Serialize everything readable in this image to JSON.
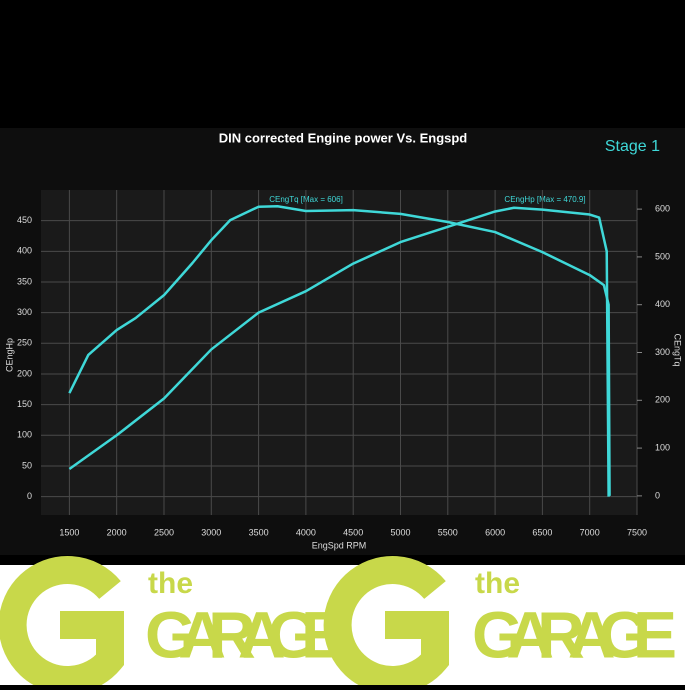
{
  "chart_data": {
    "type": "line",
    "title": "DIN corrected Engine power Vs. Engspd",
    "subtitle": "Stage 1",
    "xlabel": "EngSpd RPM",
    "ylabel": "CEngHp",
    "y2label": "CEngTq",
    "xlim": [
      1200,
      7500
    ],
    "xticks": [
      1500,
      2000,
      2500,
      3000,
      3500,
      4000,
      4500,
      5000,
      5500,
      6000,
      6500,
      7000,
      7500
    ],
    "ylim": [
      -30,
      500
    ],
    "yticks": [
      0,
      50,
      100,
      150,
      200,
      250,
      300,
      350,
      400,
      450
    ],
    "y2lim": [
      -40,
      640
    ],
    "y2ticks": [
      0,
      100,
      200,
      300,
      400,
      500,
      600
    ],
    "grid": true,
    "annotations": [
      "CEngTq [Max = 606]",
      "CEngHp [Max = 470.9]"
    ],
    "series": [
      {
        "name": "CEngTq",
        "color": "#3fd8d8",
        "axis": "y2",
        "x": [
          1500,
          1700,
          2000,
          2200,
          2500,
          2800,
          3000,
          3200,
          3500,
          3700,
          4000,
          4500,
          5000,
          5500,
          6000,
          6500,
          7000,
          7150,
          7200,
          7210
        ],
        "values": [
          215,
          295,
          347,
          372,
          420,
          487,
          535,
          577,
          605,
          606,
          596,
          598,
          590,
          573,
          552,
          510,
          462,
          441,
          400,
          0
        ]
      },
      {
        "name": "CEngHp",
        "color": "#3fd8d8",
        "axis": "y",
        "x": [
          1500,
          2000,
          2500,
          3000,
          3500,
          4000,
          4500,
          5000,
          5500,
          6000,
          6200,
          6500,
          7000,
          7100,
          7180,
          7200
        ],
        "values": [
          45,
          100,
          160,
          240,
          300,
          335,
          380,
          415,
          440,
          465,
          471,
          468,
          460,
          455,
          400,
          0
        ]
      }
    ]
  },
  "banner": {
    "items": [
      {
        "small": "the",
        "large": "GARAGE"
      },
      {
        "small": "the",
        "large": "GARAGE"
      }
    ]
  }
}
